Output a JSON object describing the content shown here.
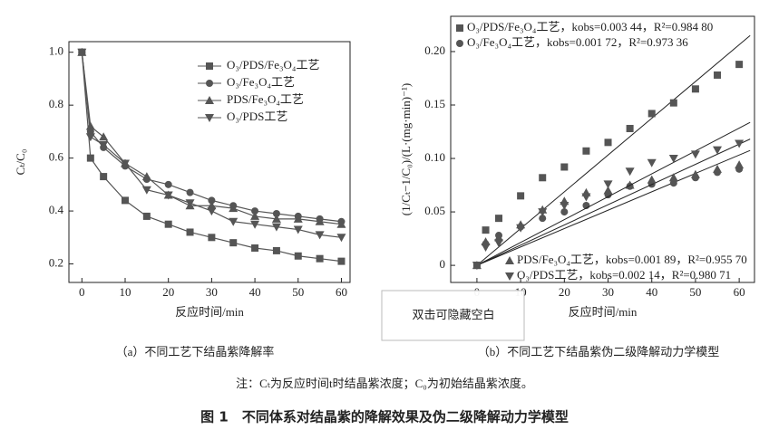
{
  "chart_data": [
    {
      "type": "line",
      "x_label": "反应时间/min",
      "y_label": "Cₜ/C₀",
      "x": [
        0,
        2,
        5,
        10,
        15,
        20,
        25,
        30,
        35,
        40,
        45,
        50,
        55,
        60
      ],
      "xlim": [
        -3,
        62
      ],
      "xticks": [
        0,
        10,
        20,
        30,
        40,
        50,
        60
      ],
      "ylim": [
        0.13,
        1.04
      ],
      "yticks": [
        0.2,
        0.4,
        0.6,
        0.8,
        {
          "value": 1,
          "label": "1.0"
        }
      ],
      "legend": "upper right",
      "series": [
        {
          "name": "O₃/PDS/Fe₃O₄工艺",
          "marker": "square",
          "color": "#555555",
          "values": [
            1.0,
            0.6,
            0.53,
            0.44,
            0.38,
            0.35,
            0.32,
            0.3,
            0.28,
            0.26,
            0.25,
            0.23,
            0.22,
            0.21
          ]
        },
        {
          "name": "O₃/Fe₃O₄工艺",
          "marker": "circle",
          "color": "#555555",
          "values": [
            1.0,
            0.7,
            0.64,
            0.57,
            0.52,
            0.5,
            0.47,
            0.44,
            0.42,
            0.4,
            0.39,
            0.38,
            0.37,
            0.36
          ]
        },
        {
          "name": "PDS/Fe₃O₄工艺",
          "marker": "triangle-up",
          "color": "#555555",
          "values": [
            1.0,
            0.72,
            0.68,
            0.58,
            0.53,
            0.46,
            0.42,
            0.42,
            0.41,
            0.38,
            0.37,
            0.37,
            0.36,
            0.35
          ]
        },
        {
          "name": "O₃/PDS工艺",
          "marker": "triangle-down",
          "color": "#555555",
          "values": [
            1.0,
            0.68,
            0.65,
            0.58,
            0.48,
            0.46,
            0.43,
            0.4,
            0.36,
            0.35,
            0.34,
            0.33,
            0.31,
            0.3
          ]
        }
      ]
    },
    {
      "type": "scatter",
      "x_label": "反应时间/min",
      "y_label": "(1/Cₜ−1/C₀)/(L·(mg·min)⁻¹)",
      "x": [
        0,
        2,
        5,
        10,
        15,
        20,
        25,
        30,
        35,
        40,
        45,
        50,
        55,
        60
      ],
      "xlim": [
        -6,
        63.5
      ],
      "xticks": [
        0,
        10,
        20,
        30,
        40,
        50,
        60
      ],
      "ylim": [
        -0.016,
        0.233
      ],
      "yticks": [
        0,
        0.05,
        {
          "value": 0.1,
          "label": "0.10"
        },
        0.15,
        {
          "value": 0.2,
          "label": "0.20"
        }
      ],
      "series": [
        {
          "name": "O₃/PDS/Fe₃O₄工艺",
          "fit_label": "，kobs=0.003 44，R²=0.984 80",
          "k": 0.00344,
          "marker": "square",
          "color": "#555555",
          "values": [
            0,
            0.033,
            0.044,
            0.065,
            0.082,
            0.092,
            0.107,
            0.115,
            0.128,
            0.142,
            0.152,
            0.165,
            0.178,
            0.188
          ]
        },
        {
          "name": "O₃/Fe₃O₄工艺",
          "fit_label": "，kobs=0.001 72，R²=0.973 36",
          "k": 0.00172,
          "marker": "circle",
          "color": "#555555",
          "values": [
            0,
            0.02,
            0.028,
            0.036,
            0.044,
            0.05,
            0.056,
            0.066,
            0.074,
            0.076,
            0.077,
            0.082,
            0.087,
            0.09
          ]
        },
        {
          "name": "PDS/Fe₃O₄工艺",
          "fit_label": "，kobs=0.001 89，R²=0.955 70",
          "k": 0.00189,
          "marker": "triangle-up",
          "color": "#555555",
          "values": [
            0,
            0.022,
            0.026,
            0.038,
            0.052,
            0.06,
            0.068,
            0.07,
            0.075,
            0.08,
            0.082,
            0.085,
            0.09,
            0.094
          ]
        },
        {
          "name": "O₃/PDS工艺",
          "fit_label": "，kobs=0.002 14，R²=0.980 71",
          "k": 0.00214,
          "marker": "triangle-down",
          "color": "#555555",
          "values": [
            0,
            0.017,
            0.021,
            0.035,
            0.05,
            0.056,
            0.064,
            0.076,
            0.088,
            0.096,
            0.1,
            0.104,
            0.108,
            0.114
          ]
        }
      ]
    }
  ],
  "figure": {
    "caption_a": "（a）不同工艺下结晶紫降解率",
    "caption_b": "（b）不同工艺下结晶紫伪二级降解动力学模型",
    "note": "注：Cₜ为反应时间t时结晶紫浓度；C₀为初始结晶紫浓度。",
    "title": "图 1　不同体系对结晶紫的降解效果及伪二级降解动力学模型"
  },
  "overlay": {
    "text": "双击可隐藏空白"
  }
}
